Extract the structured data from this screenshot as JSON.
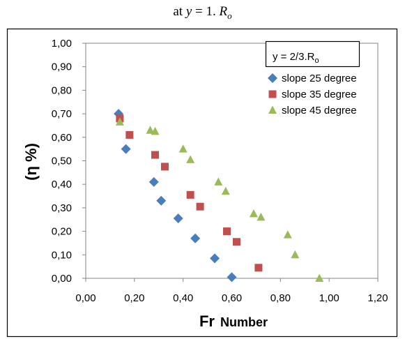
{
  "caption": {
    "prefix": "at ",
    "var": "y",
    "middle": " = 1. ",
    "r": "R",
    "r_sub": "o"
  },
  "chart_data": {
    "type": "scatter",
    "title": "",
    "xlabel_main": "Fr",
    "xlabel_rest": "Number",
    "ylabel": "(η %)",
    "xlim": [
      0,
      1.2
    ],
    "ylim": [
      0,
      1.0
    ],
    "x_ticks": [
      "0,00",
      "0,20",
      "0,40",
      "0,60",
      "0,80",
      "1,00",
      "1,20"
    ],
    "y_ticks": [
      "0,00",
      "0,10",
      "0,20",
      "0,30",
      "0,40",
      "0,50",
      "0,60",
      "0,70",
      "0,80",
      "0,90",
      "1,00"
    ],
    "grid": false,
    "legend_position": "top-right",
    "legend_title_main": "y = 2/3.R",
    "legend_title_sub": "o",
    "series": [
      {
        "name": "slope 25 degree",
        "marker": "diamond",
        "color": "#4a7ebb",
        "points": [
          [
            0.135,
            0.7
          ],
          [
            0.165,
            0.55
          ],
          [
            0.28,
            0.41
          ],
          [
            0.31,
            0.33
          ],
          [
            0.38,
            0.255
          ],
          [
            0.45,
            0.17
          ],
          [
            0.53,
            0.085
          ],
          [
            0.6,
            0.005
          ]
        ]
      },
      {
        "name": "slope 35 degree",
        "marker": "square",
        "color": "#c0504d",
        "points": [
          [
            0.14,
            0.68
          ],
          [
            0.18,
            0.61
          ],
          [
            0.285,
            0.525
          ],
          [
            0.325,
            0.475
          ],
          [
            0.43,
            0.355
          ],
          [
            0.47,
            0.305
          ],
          [
            0.58,
            0.2
          ],
          [
            0.62,
            0.155
          ],
          [
            0.71,
            0.045
          ]
        ]
      },
      {
        "name": "slope 45 degree",
        "marker": "triangle",
        "color": "#9bbb59",
        "points": [
          [
            0.14,
            0.665
          ],
          [
            0.265,
            0.63
          ],
          [
            0.285,
            0.625
          ],
          [
            0.4,
            0.55
          ],
          [
            0.43,
            0.505
          ],
          [
            0.545,
            0.41
          ],
          [
            0.575,
            0.37
          ],
          [
            0.69,
            0.275
          ],
          [
            0.72,
            0.26
          ],
          [
            0.83,
            0.185
          ],
          [
            0.86,
            0.1
          ],
          [
            0.96,
            0.0
          ]
        ]
      }
    ]
  }
}
